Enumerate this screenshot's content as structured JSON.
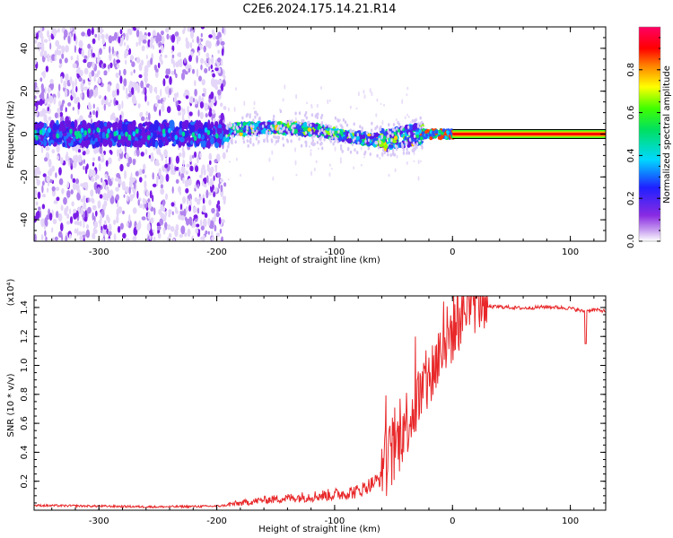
{
  "figure": {
    "title": "C2E6.2024.175.14.21.R14"
  },
  "colors": {
    "line": "#e8282a",
    "axis": "#000000",
    "spectro_low": "#d8c8f4",
    "spectro_mid": "#7a20e8",
    "spectro_high": "#ff0000"
  },
  "chart_data": [
    {
      "type": "heatmap",
      "title": "C2E6.2024.175.14.21.R14",
      "xlabel": "Height of straight line (km)",
      "ylabel": "Frequency (Hz)",
      "xlim": [
        -355,
        130
      ],
      "ylim": [
        -50,
        50
      ],
      "xticks": [
        -300,
        -200,
        -100,
        0,
        100
      ],
      "yticks": [
        -40,
        -20,
        0,
        20,
        40
      ],
      "colorbar": {
        "label": "Normalized spectral amplitude",
        "range": [
          0,
          1
        ],
        "ticks": [
          "0.0",
          "0.2",
          "0.4",
          "0.6",
          "0.8"
        ],
        "colormap": "rainbow (magenta-red-orange-yellow-green-cyan-blue-violet-white)"
      },
      "features": {
        "noise_region_x": [
          -355,
          -193
        ],
        "carrier_frequency_hz": 0,
        "carrier_drift": [
          {
            "x": -190,
            "f": 2
          },
          {
            "x": -150,
            "f": 3
          },
          {
            "x": -120,
            "f": 2
          },
          {
            "x": -100,
            "f": 0
          },
          {
            "x": -75,
            "f": -2
          },
          {
            "x": -60,
            "f": -3
          },
          {
            "x": -45,
            "f": -2
          },
          {
            "x": -30,
            "f": 0
          },
          {
            "x": 0,
            "f": 0
          },
          {
            "x": 130,
            "f": 0
          }
        ],
        "strong_signal_start_x": 0
      }
    },
    {
      "type": "line",
      "xlabel": "Height of straight line (km)",
      "ylabel": "SNR (10 * v/v)",
      "y_multiplier": "(x10⁴)",
      "xlim": [
        -355,
        130
      ],
      "ylim": [
        0,
        14800
      ],
      "xticks": [
        -300,
        -200,
        -100,
        0,
        100
      ],
      "yticks": [
        2000,
        4000,
        6000,
        8000,
        10000,
        12000,
        14000
      ],
      "ytick_labels": [
        "0.2",
        "0.4",
        "0.6",
        "0.8",
        "1.0",
        "1.2",
        "1.4"
      ],
      "series": [
        {
          "x": [
            -355,
            -300,
            -250,
            -200,
            -180,
            -160,
            -140,
            -120,
            -100,
            -80,
            -60,
            -50,
            -40,
            -30,
            -20,
            -10,
            0,
            10,
            20,
            30,
            40,
            60,
            80,
            100,
            110,
            120,
            130
          ],
          "y": [
            300,
            250,
            200,
            250,
            400,
            600,
            700,
            800,
            900,
            1100,
            2000,
            3000,
            5000,
            6500,
            8000,
            10000,
            11500,
            13000,
            13600,
            14000,
            14000,
            13900,
            14000,
            13900,
            13700,
            13800,
            13700
          ]
        }
      ]
    }
  ]
}
